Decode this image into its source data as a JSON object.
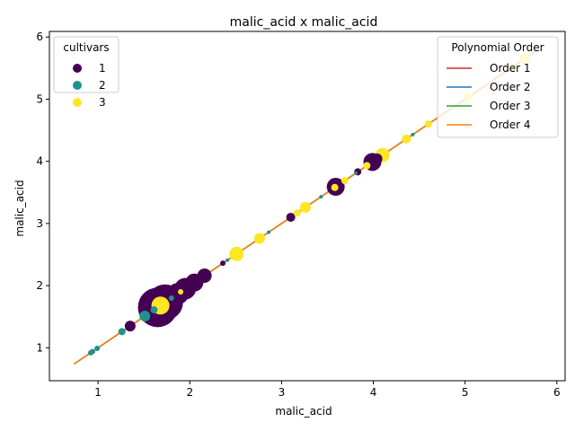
{
  "chart_data": {
    "type": "scatter",
    "title": "malic_acid x malic_acid",
    "xlabel": "malic_acid",
    "ylabel": "malic_acid",
    "xlim": [
      0.47,
      6.09
    ],
    "ylim": [
      0.47,
      6.09
    ],
    "xticks": [
      "1",
      "2",
      "3",
      "4",
      "5",
      "6"
    ],
    "yticks": [
      "1",
      "2",
      "3",
      "4",
      "5",
      "6"
    ],
    "grid": false,
    "scatter_legend": {
      "title": "cultivars",
      "placement": "top-left",
      "entries": [
        {
          "label": "1",
          "color": "#440154"
        },
        {
          "label": "2",
          "color": "#21918c"
        },
        {
          "label": "3",
          "color": "#fde725"
        }
      ]
    },
    "lines_legend": {
      "title": "Polynomial Order",
      "placement": "top-right",
      "entries": [
        {
          "label": "Order 1",
          "color": "#d62728"
        },
        {
          "label": "Order 2",
          "color": "#1f77b4"
        },
        {
          "label": "Order 3",
          "color": "#2ca02c"
        },
        {
          "label": "Order 4",
          "color": "#ff7f0e"
        }
      ]
    },
    "fit_lines": [
      {
        "name": "Order 1",
        "color": "#d62728",
        "x": [
          0.74,
          5.8
        ],
        "y": [
          0.74,
          5.8
        ]
      },
      {
        "name": "Order 2",
        "color": "#1f77b4",
        "x": [
          0.74,
          5.8
        ],
        "y": [
          0.74,
          5.8
        ]
      },
      {
        "name": "Order 3",
        "color": "#2ca02c",
        "x": [
          0.74,
          5.8
        ],
        "y": [
          0.74,
          5.8
        ]
      },
      {
        "name": "Order 4",
        "color": "#ff7f0e",
        "x": [
          0.74,
          5.8
        ],
        "y": [
          0.74,
          5.8
        ]
      }
    ],
    "series": [
      {
        "name": "1",
        "color": "#440154",
        "points": [
          {
            "x": 1.35,
            "y": 1.35,
            "size": 6
          },
          {
            "x": 1.65,
            "y": 1.65,
            "size": 22
          },
          {
            "x": 1.73,
            "y": 1.73,
            "size": 20
          },
          {
            "x": 1.81,
            "y": 1.81,
            "size": 13
          },
          {
            "x": 1.87,
            "y": 1.87,
            "size": 12
          },
          {
            "x": 1.95,
            "y": 1.95,
            "size": 12
          },
          {
            "x": 2.05,
            "y": 2.05,
            "size": 10
          },
          {
            "x": 2.16,
            "y": 2.16,
            "size": 8
          },
          {
            "x": 2.36,
            "y": 2.36,
            "size": 3
          },
          {
            "x": 3.1,
            "y": 3.1,
            "size": 5
          },
          {
            "x": 3.59,
            "y": 3.59,
            "size": 10
          },
          {
            "x": 3.83,
            "y": 3.83,
            "size": 4
          },
          {
            "x": 3.99,
            "y": 3.99,
            "size": 10
          },
          {
            "x": 4.04,
            "y": 4.04,
            "size": 6
          }
        ]
      },
      {
        "name": "2",
        "color": "#21918c",
        "points": [
          {
            "x": 0.92,
            "y": 0.92,
            "size": 3
          },
          {
            "x": 0.94,
            "y": 0.94,
            "size": 3
          },
          {
            "x": 0.99,
            "y": 0.99,
            "size": 3
          },
          {
            "x": 1.26,
            "y": 1.26,
            "size": 4
          },
          {
            "x": 1.51,
            "y": 1.51,
            "size": 6
          },
          {
            "x": 1.61,
            "y": 1.61,
            "size": 4
          },
          {
            "x": 1.8,
            "y": 1.8,
            "size": 3
          },
          {
            "x": 2.41,
            "y": 2.41,
            "size": 2
          },
          {
            "x": 2.86,
            "y": 2.86,
            "size": 2
          },
          {
            "x": 3.43,
            "y": 3.43,
            "size": 2
          },
          {
            "x": 3.81,
            "y": 3.81,
            "size": 2
          },
          {
            "x": 4.43,
            "y": 4.43,
            "size": 2
          }
        ]
      },
      {
        "name": "3",
        "color": "#fde725",
        "points": [
          {
            "x": 1.68,
            "y": 1.68,
            "size": 10
          },
          {
            "x": 1.9,
            "y": 1.9,
            "size": 3
          },
          {
            "x": 2.51,
            "y": 2.51,
            "size": 8
          },
          {
            "x": 2.76,
            "y": 2.76,
            "size": 6
          },
          {
            "x": 3.17,
            "y": 3.17,
            "size": 4
          },
          {
            "x": 3.26,
            "y": 3.26,
            "size": 6
          },
          {
            "x": 3.58,
            "y": 3.58,
            "size": 4
          },
          {
            "x": 3.69,
            "y": 3.69,
            "size": 4
          },
          {
            "x": 3.93,
            "y": 3.93,
            "size": 4
          },
          {
            "x": 4.1,
            "y": 4.1,
            "size": 8
          },
          {
            "x": 4.36,
            "y": 4.36,
            "size": 5
          },
          {
            "x": 4.6,
            "y": 4.6,
            "size": 4
          },
          {
            "x": 5.04,
            "y": 5.04,
            "size": 5
          },
          {
            "x": 5.51,
            "y": 5.51,
            "size": 4
          },
          {
            "x": 5.65,
            "y": 5.65,
            "size": 6
          }
        ]
      }
    ]
  }
}
